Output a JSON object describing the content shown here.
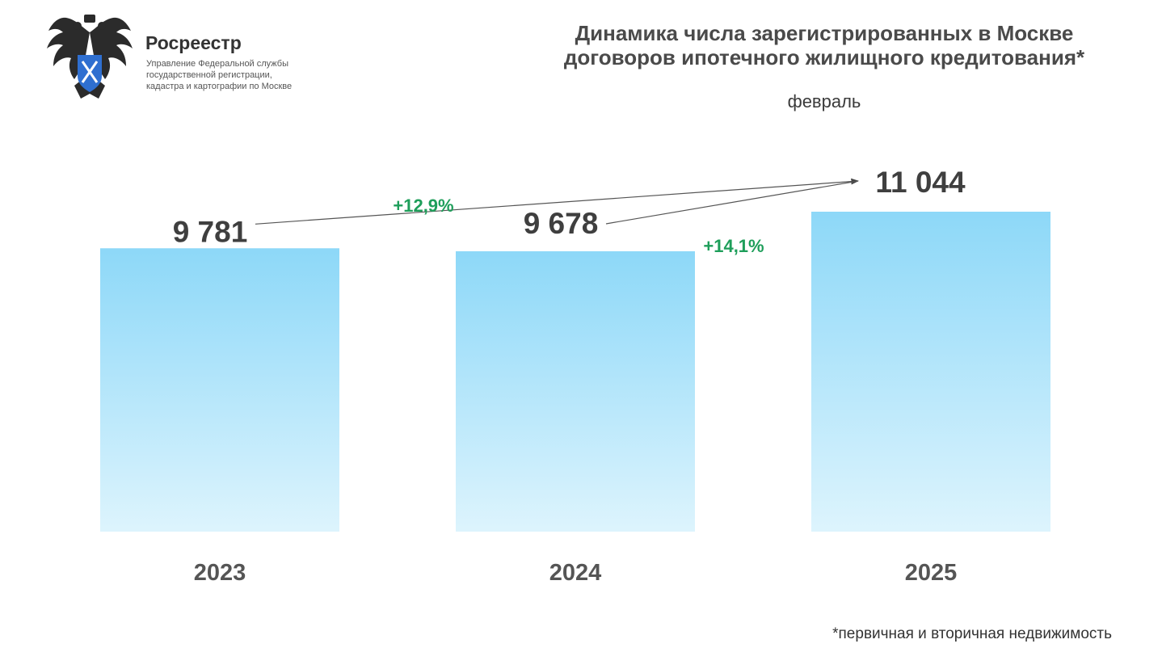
{
  "brand": {
    "name": "Росреестр",
    "description_lines": [
      "Управление Федеральной службы",
      "государственной регистрации,",
      "кадастра и картографии по Москве"
    ],
    "emblem_icon": "double-headed-eagle-icon"
  },
  "chart_data": {
    "type": "bar",
    "title_lines": [
      "Динамика числа зарегистрированных в Москве",
      "договоров ипотечного жилищного кредитования*"
    ],
    "subtitle": "февраль",
    "categories": [
      "2023",
      "2024",
      "2025"
    ],
    "values": [
      9781,
      9678,
      11044
    ],
    "value_labels": [
      "9 781",
      "9 678",
      "11 044"
    ],
    "ylim": [
      0,
      11044
    ],
    "grid": false,
    "bar_color_top": "#8dd8f8",
    "bar_color_bottom": "#ddf4fd",
    "annotations": [
      {
        "from": 0,
        "to": 2,
        "label": "+12,9%"
      },
      {
        "from": 1,
        "to": 2,
        "label": "+14,1%"
      }
    ],
    "annotation_color": "#1e9e5a",
    "footnote": "*первичная и вторичная недвижимость"
  }
}
